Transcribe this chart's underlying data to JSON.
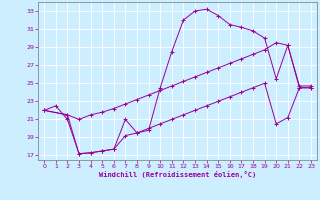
{
  "xlabel": "Windchill (Refroidissement éolien,°C)",
  "bg_color": "#cceeff",
  "line_color": "#990099",
  "grid_color": "#ffffff",
  "xlim": [
    -0.5,
    23.5
  ],
  "ylim": [
    16.5,
    34
  ],
  "xticks": [
    0,
    1,
    2,
    3,
    4,
    5,
    6,
    7,
    8,
    9,
    10,
    11,
    12,
    13,
    14,
    15,
    16,
    17,
    18,
    19,
    20,
    21,
    22,
    23
  ],
  "yticks": [
    17,
    19,
    21,
    23,
    25,
    27,
    29,
    31,
    33
  ],
  "series1_x": [
    0,
    1,
    2,
    3,
    4,
    5,
    6,
    7,
    8,
    9,
    10,
    11,
    12,
    13,
    14,
    15,
    16,
    17,
    18,
    19,
    20,
    21,
    22,
    23
  ],
  "series1_y": [
    22.0,
    22.5,
    21.0,
    17.2,
    17.3,
    17.5,
    17.7,
    21.0,
    19.5,
    19.8,
    24.5,
    28.5,
    32.0,
    33.0,
    33.2,
    32.5,
    31.5,
    31.2,
    30.8,
    30.0,
    25.5,
    29.2,
    24.5,
    24.5
  ],
  "series2_x": [
    0,
    2,
    3,
    4,
    5,
    6,
    7,
    8,
    9,
    10,
    11,
    12,
    13,
    14,
    15,
    16,
    17,
    18,
    19,
    20,
    21,
    22,
    23
  ],
  "series2_y": [
    22.0,
    21.5,
    21.0,
    21.5,
    21.8,
    22.2,
    22.7,
    23.2,
    23.7,
    24.2,
    24.7,
    25.2,
    25.7,
    26.2,
    26.7,
    27.2,
    27.7,
    28.2,
    28.7,
    29.5,
    29.2,
    24.7,
    24.7
  ],
  "series3_x": [
    0,
    2,
    3,
    4,
    5,
    6,
    7,
    8,
    9,
    10,
    11,
    12,
    13,
    14,
    15,
    16,
    17,
    18,
    19,
    20,
    21,
    22,
    23
  ],
  "series3_y": [
    22.0,
    21.5,
    17.2,
    17.3,
    17.5,
    17.7,
    19.2,
    19.5,
    20.0,
    20.5,
    21.0,
    21.5,
    22.0,
    22.5,
    23.0,
    23.5,
    24.0,
    24.5,
    25.0,
    20.5,
    21.2,
    24.5,
    24.5
  ]
}
